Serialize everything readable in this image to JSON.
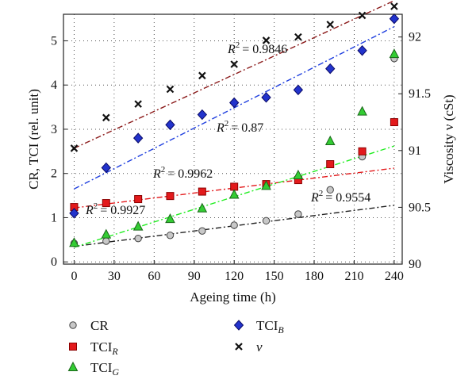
{
  "chart_data": {
    "type": "scatter",
    "xlabel": "Ageing time (h)",
    "ylabel_left": "CR, TCI (rel. unit)",
    "ylabel_right": "Viscosity ν (cSt)",
    "x_ticks": [
      0,
      30,
      60,
      90,
      120,
      150,
      180,
      210,
      240
    ],
    "y_left_ticks": [
      0,
      1,
      2,
      3,
      4,
      5
    ],
    "y_right_ticks": [
      90,
      90.5,
      91,
      91.5,
      92
    ],
    "y_right_tick_labels": [
      "90",
      "90.5",
      "91",
      "91.5",
      "92"
    ],
    "xlim": [
      -8,
      246
    ],
    "ylim_left": [
      -0.05,
      5.6
    ],
    "ylim_right": [
      90,
      92.2
    ],
    "grid": true,
    "legend_placement": "bottom",
    "series": [
      {
        "name": "CR",
        "sub": "",
        "axis": "left",
        "marker": "circle",
        "color": "#c8c8c8",
        "stroke": "#444444",
        "x": [
          0,
          24,
          48,
          72,
          96,
          120,
          144,
          168,
          192,
          216,
          240
        ],
        "y": [
          0.42,
          0.47,
          0.53,
          0.6,
          0.7,
          0.83,
          0.93,
          1.08,
          1.63,
          2.38,
          4.6
        ],
        "fit": {
          "x0": 0,
          "y0": 0.35,
          "x1": 240,
          "y1": 1.28,
          "color": "#222222",
          "r2_label": "R",
          "r2_value": "= 0.9554"
        }
      },
      {
        "name": "TCI",
        "sub": "R",
        "axis": "left",
        "marker": "square",
        "color": "#e31a1c",
        "stroke": "#8b0000",
        "x": [
          0,
          24,
          48,
          72,
          96,
          120,
          144,
          168,
          192,
          216,
          240
        ],
        "y": [
          1.24,
          1.33,
          1.42,
          1.49,
          1.59,
          1.7,
          1.76,
          1.85,
          2.21,
          2.5,
          3.16
        ],
        "fit": {
          "x0": 0,
          "y0": 1.22,
          "x1": 240,
          "y1": 2.12,
          "color": "#e31a1c",
          "r2_label": "R",
          "r2_value": "= 0.9962"
        }
      },
      {
        "name": "TCI",
        "sub": "G",
        "axis": "left",
        "marker": "triangle",
        "color": "#33cc33",
        "stroke": "#1a661a",
        "x": [
          0,
          24,
          48,
          72,
          96,
          120,
          144,
          168,
          192,
          216,
          240
        ],
        "y": [
          0.43,
          0.62,
          0.8,
          0.97,
          1.21,
          1.52,
          1.72,
          1.96,
          2.73,
          3.4,
          4.7
        ],
        "fit": {
          "x0": 0,
          "y0": 0.33,
          "x1": 240,
          "y1": 2.62,
          "color": "#22ee22",
          "r2_label": "R",
          "r2_value": "= 0.9927"
        }
      },
      {
        "name": "TCI",
        "sub": "B",
        "axis": "left",
        "marker": "diamond",
        "color": "#2233cc",
        "stroke": "#0a0a66",
        "x": [
          0,
          24,
          48,
          72,
          96,
          120,
          144,
          168,
          192,
          216,
          240
        ],
        "y": [
          1.1,
          2.13,
          2.8,
          3.1,
          3.33,
          3.6,
          3.72,
          3.89,
          4.37,
          4.78,
          5.5
        ],
        "fit": {
          "x0": 0,
          "y0": 1.65,
          "x1": 240,
          "y1": 5.32,
          "color": "#1f3fdf",
          "r2_label": "R",
          "r2_value": "= 0.87"
        }
      },
      {
        "name": "ν",
        "sub": "",
        "axis": "right",
        "marker": "cross",
        "color": "#111111",
        "stroke": "#111111",
        "x": [
          0,
          24,
          48,
          72,
          96,
          120,
          144,
          168,
          192,
          216,
          240
        ],
        "y": [
          91.02,
          91.29,
          91.41,
          91.54,
          91.66,
          91.76,
          91.97,
          92.0,
          92.11,
          92.19,
          92.27
        ],
        "fit": {
          "x0": 0,
          "y0": 91.02,
          "x1": 240,
          "y1": 92.32,
          "color": "#8b1a1a",
          "r2_label": "R",
          "r2_value": "= 0.9846"
        }
      }
    ]
  }
}
